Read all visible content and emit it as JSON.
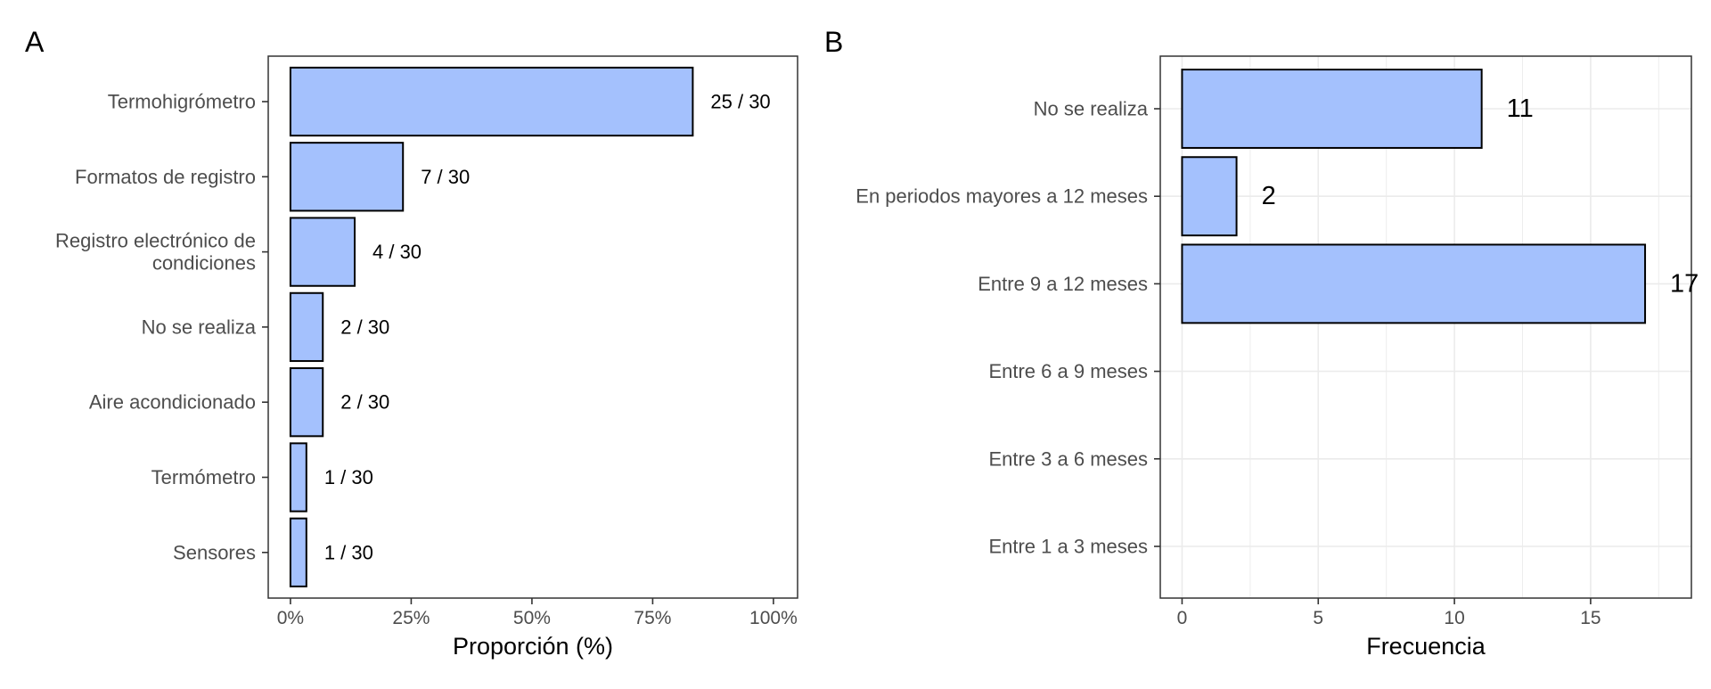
{
  "colors": {
    "bar_fill": "#a4c1fd",
    "bar_stroke": "#000000",
    "grid": "#ebebeb",
    "panel_border": "#333333"
  },
  "chart_data": [
    {
      "type": "bar",
      "orientation": "horizontal",
      "panel_label": "A",
      "categories": [
        "Termohigrómetro",
        "Formatos de registro",
        "Registro electrónico de condiciones",
        "No se realiza",
        "Aire acondicionado",
        "Termómetro",
        "Sensores"
      ],
      "category_lines": [
        [
          "Termohigrómetro"
        ],
        [
          "Formatos de registro"
        ],
        [
          "Registro electrónico de",
          "condiciones"
        ],
        [
          "No se realiza"
        ],
        [
          "Aire acondicionado"
        ],
        [
          "Termómetro"
        ],
        [
          "Sensores"
        ]
      ],
      "values": [
        83.3,
        23.3,
        13.3,
        6.7,
        6.7,
        3.3,
        3.3
      ],
      "data_labels": [
        "25 / 30",
        "7 / 30",
        "4 / 30",
        "2 / 30",
        "2 / 30",
        "1 / 30",
        "1 / 30"
      ],
      "xlabel": "Proporción (%)",
      "xlim": [
        -4.6,
        105
      ],
      "xticks": [
        0,
        25,
        50,
        75,
        100
      ],
      "xtick_labels": [
        "0%",
        "25%",
        "50%",
        "75%",
        "100%"
      ],
      "grid": false
    },
    {
      "type": "bar",
      "orientation": "horizontal",
      "panel_label": "B",
      "categories": [
        "No se realiza",
        "En periodos mayores a 12 meses",
        "Entre 9 a 12 meses",
        "Entre 6 a 9 meses",
        "Entre 3 a 6 meses",
        "Entre 1 a 3 meses"
      ],
      "category_lines": [
        [
          "No se realiza"
        ],
        [
          "En periodos mayores a 12 meses"
        ],
        [
          "Entre 9 a 12 meses"
        ],
        [
          "Entre 6 a 9 meses"
        ],
        [
          "Entre 3 a 6 meses"
        ],
        [
          "Entre 1 a 3 meses"
        ]
      ],
      "values": [
        11,
        2,
        17,
        null,
        null,
        null
      ],
      "data_labels": [
        "11",
        "2",
        "17",
        "",
        "",
        ""
      ],
      "xlabel": "Frecuencia",
      "xlim": [
        -0.8,
        18.7
      ],
      "xticks": [
        0,
        5,
        10,
        15
      ],
      "xtick_labels": [
        "0",
        "5",
        "10",
        "15"
      ],
      "grid": true
    }
  ]
}
